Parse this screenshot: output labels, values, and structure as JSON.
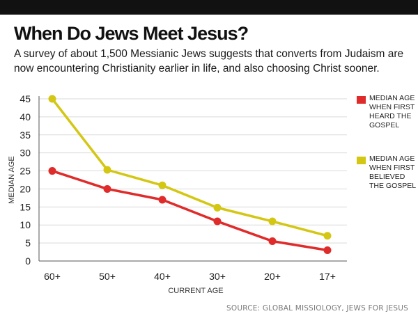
{
  "title": "When Do Jews Meet Jesus?",
  "subtitle": "A survey of about 1,500 Messianic Jews suggests that converts from Judaism are now encountering Christianity earlier in life, and also choosing Christ sooner.",
  "source": "SOURCE: GLOBAL MISSIOLOGY, JEWS FOR JESUS",
  "colors": {
    "red": "#e02b2b",
    "yellow": "#d4c714",
    "grid": "#d9d9d9",
    "bar": "#111111"
  },
  "chart_data": {
    "type": "line",
    "xlabel": "CURRENT AGE",
    "ylabel": "MEDIAN AGE",
    "categories": [
      "60+",
      "50+",
      "40+",
      "30+",
      "20+",
      "17+"
    ],
    "ylim": [
      0,
      45
    ],
    "yticks": [
      0,
      5,
      10,
      15,
      20,
      25,
      30,
      35,
      40,
      45
    ],
    "grid": true,
    "legend_position": "right",
    "series": [
      {
        "name": "MEDIAN AGE WHEN FIRST HEARD THE GOSPEL",
        "color": "#e02b2b",
        "values": [
          25,
          20,
          17,
          11,
          5.5,
          3
        ]
      },
      {
        "name": "MEDIAN AGE WHEN FIRST BELIEVED THE GOSPEL",
        "color": "#d4c714",
        "values": [
          45,
          25.3,
          21,
          14.8,
          11,
          7
        ]
      }
    ]
  }
}
